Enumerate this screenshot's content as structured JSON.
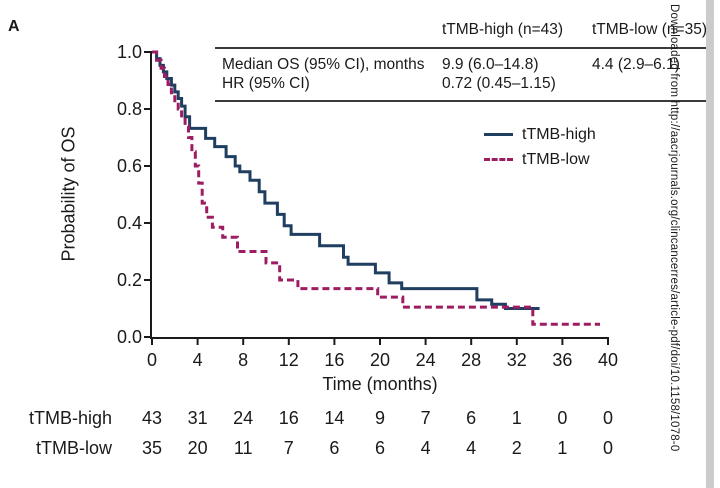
{
  "panel_label": "A",
  "watermark": {
    "text": "Downloaded from http://aacrjournals.org/clincancerres/article-pdf/doi/10.1158/1078-0"
  },
  "stats_table": {
    "headers": {
      "high": "tTMB-high (n=43)",
      "low": "tTMB-low (n=35)"
    },
    "rows": [
      {
        "label": "Median OS (95% CI), months",
        "high": "9.9 (6.0–14.8)",
        "low": "4.4 (2.9–6.1)"
      },
      {
        "label": "HR (95% CI)",
        "high": "0.72 (0.45–1.15)",
        "low": ""
      }
    ]
  },
  "legend": {
    "items": [
      {
        "label": "tTMB-high",
        "color": "#1f3e60",
        "style": "solid"
      },
      {
        "label": "tTMB-low",
        "color": "#9e1c61",
        "style": "dashed"
      }
    ]
  },
  "chart_data": {
    "type": "line",
    "subtype": "kaplan-meier-step",
    "title": "",
    "xlabel": "Time (months)",
    "ylabel": "Probability of OS",
    "xlim": [
      0,
      40
    ],
    "ylim": [
      0.0,
      1.0
    ],
    "grid": false,
    "legend_position": "upper right inside plot",
    "x_ticks": [
      {
        "v": 0,
        "label": "0"
      },
      {
        "v": 4,
        "label": "4"
      },
      {
        "v": 8,
        "label": "8"
      },
      {
        "v": 12,
        "label": "12"
      },
      {
        "v": 16,
        "label": "16"
      },
      {
        "v": 20,
        "label": "20"
      },
      {
        "v": 24,
        "label": "24"
      },
      {
        "v": 28,
        "label": "28"
      },
      {
        "v": 32,
        "label": "32"
      },
      {
        "v": 36,
        "label": "36"
      },
      {
        "v": 40,
        "label": "40"
      }
    ],
    "y_ticks": [
      {
        "v": 1.0,
        "label": "1.0"
      },
      {
        "v": 0.8,
        "label": "0.8"
      },
      {
        "v": 0.6,
        "label": "0.6"
      },
      {
        "v": 0.4,
        "label": "0.4"
      },
      {
        "v": 0.2,
        "label": "0.2"
      },
      {
        "v": 0.0,
        "label": "0.0"
      }
    ],
    "series": [
      {
        "name": "tTMB-high",
        "color": "#1f3e60",
        "line_style": "solid",
        "median_os_months": "9.9 (6.0–14.8)",
        "points": [
          [
            0,
            1.0
          ],
          [
            0.4,
            0.977
          ],
          [
            0.7,
            0.953
          ],
          [
            1.0,
            0.93
          ],
          [
            1.3,
            0.907
          ],
          [
            1.7,
            0.884
          ],
          [
            2.0,
            0.86
          ],
          [
            2.3,
            0.837
          ],
          [
            2.6,
            0.81
          ],
          [
            2.9,
            0.773
          ],
          [
            3.3,
            0.732
          ],
          [
            4.7,
            0.697
          ],
          [
            5.5,
            0.668
          ],
          [
            6.5,
            0.633
          ],
          [
            7.3,
            0.6
          ],
          [
            7.7,
            0.58
          ],
          [
            8.6,
            0.55
          ],
          [
            9.4,
            0.51
          ],
          [
            9.9,
            0.47
          ],
          [
            11.0,
            0.43
          ],
          [
            11.6,
            0.39
          ],
          [
            12.2,
            0.36
          ],
          [
            14.7,
            0.32
          ],
          [
            16.8,
            0.28
          ],
          [
            17.2,
            0.255
          ],
          [
            19.6,
            0.225
          ],
          [
            20.8,
            0.19
          ],
          [
            21.9,
            0.17
          ],
          [
            28.5,
            0.13
          ],
          [
            29.8,
            0.115
          ],
          [
            31.0,
            0.1
          ]
        ],
        "end_x": 34.0
      },
      {
        "name": "tTMB-low",
        "color": "#9e1c61",
        "line_style": "dashed",
        "median_os_months": "4.4 (2.9–6.1)",
        "points": [
          [
            0,
            1.0
          ],
          [
            0.4,
            0.971
          ],
          [
            0.8,
            0.943
          ],
          [
            1.1,
            0.914
          ],
          [
            1.4,
            0.886
          ],
          [
            1.7,
            0.857
          ],
          [
            2.0,
            0.829
          ],
          [
            2.3,
            0.8
          ],
          [
            2.6,
            0.77
          ],
          [
            2.9,
            0.74
          ],
          [
            3.2,
            0.7
          ],
          [
            3.5,
            0.65
          ],
          [
            3.8,
            0.6
          ],
          [
            4.1,
            0.54
          ],
          [
            4.4,
            0.47
          ],
          [
            4.8,
            0.42
          ],
          [
            5.3,
            0.385
          ],
          [
            6.2,
            0.35
          ],
          [
            7.5,
            0.3
          ],
          [
            10.0,
            0.26
          ],
          [
            11.2,
            0.2
          ],
          [
            12.8,
            0.17
          ],
          [
            19.8,
            0.14
          ],
          [
            22.0,
            0.105
          ],
          [
            33.4,
            0.045
          ]
        ],
        "end_x": 39.3
      }
    ],
    "hazard_ratio": "0.72 (0.45–1.15)"
  },
  "risk_table": {
    "rows": [
      {
        "label": "tTMB-high",
        "counts": [
          "43",
          "31",
          "24",
          "16",
          "14",
          "9",
          "7",
          "6",
          "1",
          "0",
          "0"
        ]
      },
      {
        "label": "tTMB-low",
        "counts": [
          "35",
          "20",
          "11",
          "7",
          "6",
          "6",
          "4",
          "4",
          "2",
          "1",
          "0"
        ]
      }
    ]
  }
}
